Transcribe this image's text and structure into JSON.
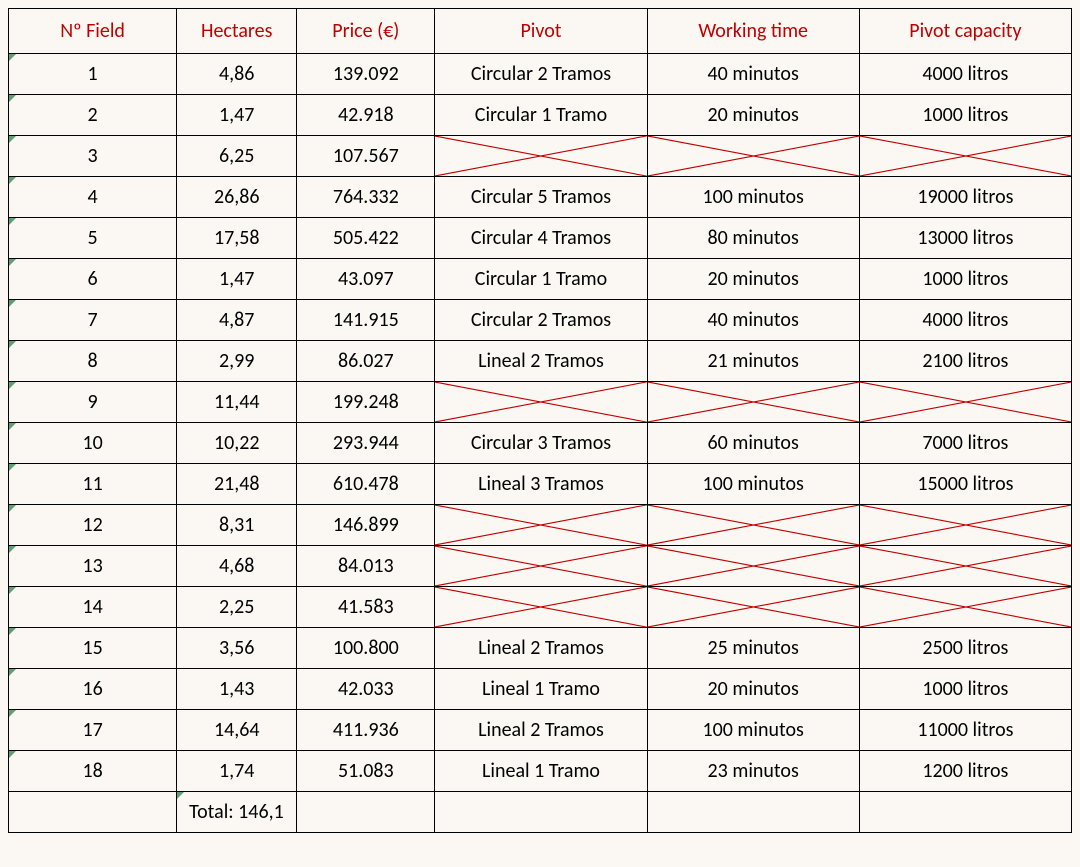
{
  "table": {
    "type": "table",
    "columns": [
      "Nº Field",
      "Hectares",
      "Price (€)",
      "Pivot",
      "Working time",
      "Pivot capacity"
    ],
    "header_color": "#c00000",
    "border_color": "#000000",
    "background_color": "#fbf8f3",
    "font_family": "Calibri",
    "font_size": 20,
    "cross_color": "#c00000",
    "tick_color": "#1a7a3a",
    "rows": [
      {
        "field": "1",
        "hectares": "4,86",
        "price": "139.092",
        "pivot": "Circular 2 Tramos",
        "time": "40  minutos",
        "capacity": "4000 litros",
        "crossed": false
      },
      {
        "field": "2",
        "hectares": "1,47",
        "price": "42.918",
        "pivot": "Circular 1 Tramo",
        "time": "20 minutos",
        "capacity": "1000 litros",
        "crossed": false
      },
      {
        "field": "3",
        "hectares": "6,25",
        "price": "107.567",
        "pivot": "",
        "time": "",
        "capacity": "",
        "crossed": true
      },
      {
        "field": "4",
        "hectares": "26,86",
        "price": "764.332",
        "pivot": "Circular 5 Tramos",
        "time": "100  minutos",
        "capacity": "19000 litros",
        "crossed": false
      },
      {
        "field": "5",
        "hectares": "17,58",
        "price": "505.422",
        "pivot": "Circular 4 Tramos",
        "time": "80  minutos",
        "capacity": "13000 litros",
        "crossed": false
      },
      {
        "field": "6",
        "hectares": "1,47",
        "price": "43.097",
        "pivot": "Circular 1 Tramo",
        "time": "20 minutos",
        "capacity": "1000 litros",
        "crossed": false
      },
      {
        "field": "7",
        "hectares": "4,87",
        "price": "141.915",
        "pivot": "Circular 2 Tramos",
        "time": "40  minutos",
        "capacity": "4000 litros",
        "crossed": false
      },
      {
        "field": "8",
        "hectares": "2,99",
        "price": "86.027",
        "pivot": "Lineal 2 Tramos",
        "time": "21 minutos",
        "capacity": "2100 litros",
        "crossed": false
      },
      {
        "field": "9",
        "hectares": "11,44",
        "price": "199.248",
        "pivot": "",
        "time": "",
        "capacity": "",
        "crossed": true
      },
      {
        "field": "10",
        "hectares": "10,22",
        "price": "293.944",
        "pivot": "Circular 3 Tramos",
        "time": "60  minutos",
        "capacity": "7000 litros",
        "crossed": false
      },
      {
        "field": "11",
        "hectares": "21,48",
        "price": "610.478",
        "pivot": "Lineal 3 Tramos",
        "time": "100  minutos",
        "capacity": "15000 litros",
        "crossed": false
      },
      {
        "field": "12",
        "hectares": "8,31",
        "price": "146.899",
        "pivot": "",
        "time": "",
        "capacity": "",
        "crossed": true
      },
      {
        "field": "13",
        "hectares": "4,68",
        "price": "84.013",
        "pivot": "",
        "time": "",
        "capacity": "",
        "crossed": true
      },
      {
        "field": "14",
        "hectares": "2,25",
        "price": "41.583",
        "pivot": "",
        "time": "",
        "capacity": "",
        "crossed": true
      },
      {
        "field": "15",
        "hectares": "3,56",
        "price": "100.800",
        "pivot": "Lineal 2 Tramos",
        "time": "25 minutos",
        "capacity": "2500 litros",
        "crossed": false
      },
      {
        "field": "16",
        "hectares": "1,43",
        "price": "42.033",
        "pivot": "Lineal 1 Tramo",
        "time": "20 minutos",
        "capacity": "1000 litros",
        "crossed": false
      },
      {
        "field": "17",
        "hectares": "14,64",
        "price": "411.936",
        "pivot": "Lineal 2 Tramos",
        "time": "100 minutos",
        "capacity": "11000 litros",
        "crossed": false
      },
      {
        "field": "18",
        "hectares": "1,74",
        "price": "51.083",
        "pivot": "Lineal 1 Tramo",
        "time": "23 minutos",
        "capacity": "1200 litros",
        "crossed": false
      }
    ],
    "total_label": "Total: 146,1"
  }
}
